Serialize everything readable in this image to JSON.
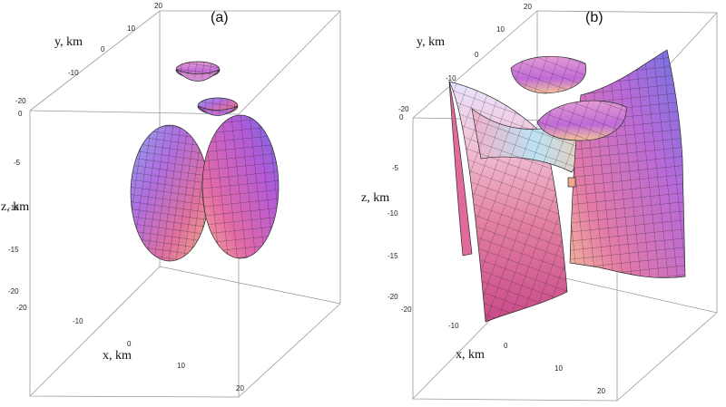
{
  "panels": [
    {
      "label": "(a)",
      "x_axis_label": "x, km",
      "y_axis_label": "y, km",
      "z_axis_label": "z, km",
      "x_ticks": [
        "-20",
        "-10",
        "0",
        "10",
        "20"
      ],
      "y_ticks": [
        "-20",
        "-10",
        "0",
        "10",
        "20"
      ],
      "z_ticks": [
        "0",
        "-5",
        "-10",
        "-15",
        "-20"
      ]
    },
    {
      "label": "(b)",
      "x_axis_label": "x, km",
      "y_axis_label": "y, km",
      "z_axis_label": "z, km",
      "x_ticks": [
        "-20",
        "-10",
        "0",
        "10",
        "20"
      ],
      "y_ticks": [
        "-20",
        "-10",
        "0",
        "10",
        "20"
      ],
      "z_ticks": [
        "0",
        "-5",
        "-10",
        "-15",
        "-20"
      ]
    }
  ],
  "colors": {
    "surface_top": "#9aa8e8",
    "surface_mid": "#c96ad6",
    "surface_low": "#e86c8a",
    "surface_warm": "#f2a98a",
    "box_edge": "#9a9a9a"
  }
}
